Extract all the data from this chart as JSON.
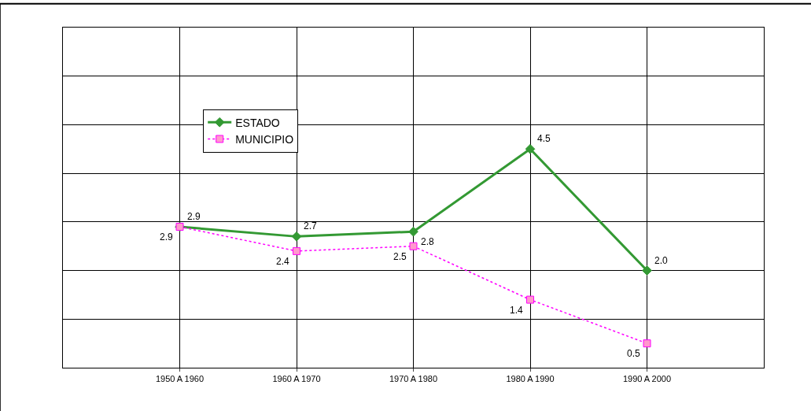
{
  "chart_data": {
    "type": "line",
    "categories": [
      "1950 A 1960",
      "1960 A 1970",
      "1970 A 1980",
      "1980 A 1990",
      "1990 A 2000"
    ],
    "series": [
      {
        "name": "ESTADO",
        "color": "#339933",
        "values": [
          2.9,
          2.7,
          2.8,
          4.5,
          2.0
        ],
        "value_labels": [
          "2.9",
          "2.7",
          "2.8",
          "4.5",
          "2.0"
        ],
        "marker": "diamond",
        "line_style": "solid"
      },
      {
        "name": "MUNICIPIO",
        "color": "#ff00ff",
        "values": [
          2.9,
          2.4,
          2.5,
          1.4,
          0.5
        ],
        "value_labels": [
          "2.9",
          "2.4",
          "2.5",
          "1.4",
          "0.5"
        ],
        "marker": "square",
        "line_style": "dotted"
      }
    ],
    "ylim": [
      0,
      7
    ],
    "yticks": [
      {
        "value": 0,
        "label": null
      },
      {
        "value": 1,
        "label": null
      },
      {
        "value": 2,
        "label": null
      },
      {
        "value": 3,
        "label": null
      },
      {
        "value": 4,
        "label": null
      },
      {
        "value": 5,
        "label": null
      },
      {
        "value": 6,
        "label": null
      },
      {
        "value": 7,
        "label": null
      }
    ],
    "tick_labels": "x",
    "grid": true,
    "legend": "top left",
    "data_labels": true
  }
}
